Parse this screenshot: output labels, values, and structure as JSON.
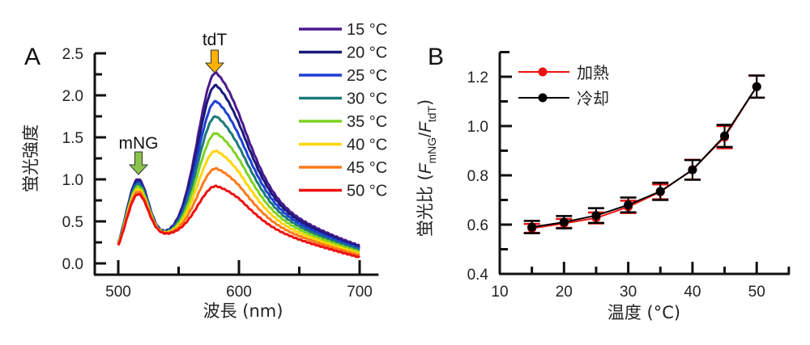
{
  "chart_data": [
    {
      "panel": "A",
      "type": "line",
      "title": "",
      "xlabel": "波長 (nm)",
      "ylabel": "蛍光強度",
      "xlim": [
        480,
        715
      ],
      "ylim": [
        -0.05,
        2.5
      ],
      "xticks": [
        500,
        600,
        700
      ],
      "xticks_minor": [
        550,
        650
      ],
      "yticks": [
        0.0,
        0.5,
        1.0,
        1.5,
        2.0,
        2.5
      ],
      "ytick_labels": [
        "0.0",
        "0.5",
        "1.0",
        "1.5",
        "2.0",
        "2.5"
      ],
      "grid": false,
      "legend_position": "top-right",
      "annotations": [
        {
          "text": "mNG",
          "x": 515,
          "arrow_color": "#8bc34a"
        },
        {
          "text": "tdT",
          "x": 580,
          "arrow_color": "#ffb300"
        }
      ],
      "x": [
        500,
        505,
        510,
        515,
        520,
        525,
        530,
        535,
        540,
        547,
        555,
        560,
        565,
        570,
        575,
        580,
        585,
        590,
        600,
        610,
        620,
        630,
        640,
        650,
        660,
        670,
        680,
        690,
        700
      ],
      "series": [
        {
          "name": "15 °C",
          "color": "#4b1a8c",
          "peak_mng": 0.98,
          "trough": 0.43,
          "peak_tdt": 2.21,
          "end": 0.18
        },
        {
          "name": "20 °C",
          "color": "#1a1a7a",
          "peak_mng": 0.96,
          "trough": 0.42,
          "peak_tdt": 2.06,
          "end": 0.17
        },
        {
          "name": "25 °C",
          "color": "#1f3fd6",
          "peak_mng": 0.94,
          "trough": 0.41,
          "peak_tdt": 1.87,
          "end": 0.17
        },
        {
          "name": "30 °C",
          "color": "#1a7a7a",
          "peak_mng": 0.92,
          "trough": 0.4,
          "peak_tdt": 1.69,
          "end": 0.16
        },
        {
          "name": "35 °C",
          "color": "#7ed321",
          "peak_mng": 0.89,
          "trough": 0.39,
          "peak_tdt": 1.49,
          "end": 0.15
        },
        {
          "name": "40 °C",
          "color": "#ffd600",
          "peak_mng": 0.86,
          "trough": 0.37,
          "peak_tdt": 1.28,
          "end": 0.14
        },
        {
          "name": "45 °C",
          "color": "#ff7a1a",
          "peak_mng": 0.83,
          "trough": 0.36,
          "peak_tdt": 1.07,
          "end": 0.13
        },
        {
          "name": "50 °C",
          "color": "#ee1111",
          "peak_mng": 0.8,
          "trough": 0.34,
          "peak_tdt": 0.86,
          "end": 0.11
        }
      ]
    },
    {
      "panel": "B",
      "type": "line",
      "title": "",
      "xlabel": "温度 (°C)",
      "ylabel": "蛍光比 (F_mNG/F_tdT)",
      "ylabel_parts": {
        "prefix": "蛍光比 (",
        "f1": "F",
        "sub1": "mNG",
        "slash": "/",
        "f2": "F",
        "sub2": "tdT",
        "suffix": ")"
      },
      "xlim": [
        10,
        55
      ],
      "ylim": [
        0.4,
        1.3
      ],
      "xticks": [
        10,
        20,
        30,
        40,
        50
      ],
      "xticks_minor": [
        15,
        25,
        35,
        45,
        55
      ],
      "yticks": [
        0.4,
        0.6,
        0.8,
        1.0,
        1.2
      ],
      "ytick_labels": [
        "0.4",
        "0.6",
        "0.8",
        "1.0",
        "1.2"
      ],
      "yticks_minor": [
        0.5,
        0.7,
        0.9,
        1.1
      ],
      "xtick_labels": [
        "10",
        "20",
        "30",
        "40",
        "50"
      ],
      "grid": false,
      "legend_position": "top-left",
      "x": [
        15,
        20,
        25,
        30,
        35,
        40,
        45,
        50
      ],
      "series": [
        {
          "name": "加熱",
          "color": "#ee1111",
          "values": [
            0.585,
            0.605,
            0.627,
            0.672,
            0.733,
            0.823,
            0.955,
            1.16
          ],
          "errors": [
            0.018,
            0.018,
            0.022,
            0.025,
            0.03,
            0.04,
            0.045,
            0.045
          ]
        },
        {
          "name": "冷却",
          "color": "#000000",
          "values": [
            0.59,
            0.61,
            0.637,
            0.68,
            0.735,
            0.822,
            0.96,
            1.16
          ],
          "errors": [
            0.025,
            0.025,
            0.03,
            0.03,
            0.035,
            0.04,
            0.045,
            0.045
          ]
        }
      ]
    }
  ],
  "labels": {
    "panel_a": "A",
    "panel_b": "B"
  }
}
